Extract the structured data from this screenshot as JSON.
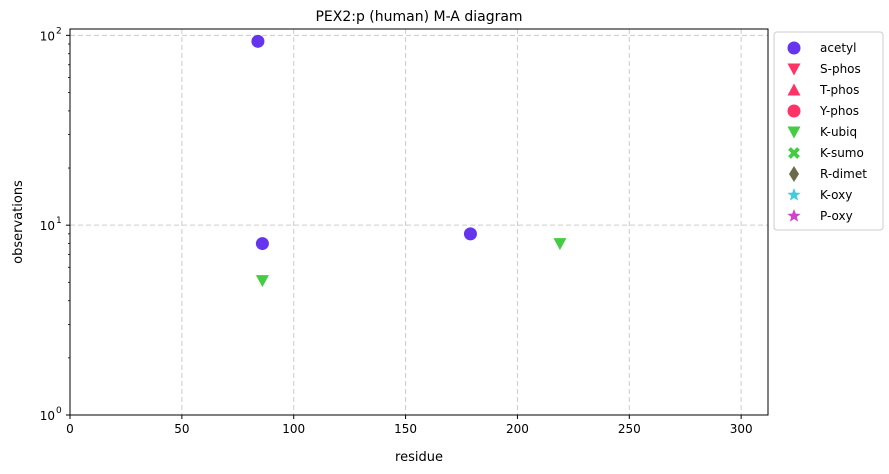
{
  "chart_data": {
    "type": "scatter",
    "title": "PEX2:p (human) M-A diagram",
    "xlabel": "residue",
    "ylabel": "observations",
    "xlim": [
      0,
      312
    ],
    "ylim": [
      1,
      108
    ],
    "yscale": "log",
    "grid": true,
    "legend_position": "outside-right",
    "x_ticks": [
      0,
      50,
      100,
      150,
      200,
      250,
      300
    ],
    "x_tick_labels": [
      "0",
      "50",
      "100",
      "150",
      "200",
      "250",
      "300"
    ],
    "y_ticks": [
      1,
      10,
      100
    ],
    "y_tick_labels": [
      "10",
      "10",
      "10"
    ],
    "y_tick_exponents": [
      "0",
      "1",
      "2"
    ],
    "series": [
      {
        "name": "acetyl",
        "marker": "circle",
        "color": "#6633ee",
        "points": [
          [
            84,
            93
          ],
          [
            86,
            8
          ],
          [
            179,
            9
          ]
        ]
      },
      {
        "name": "S-phos",
        "marker": "triangle-down",
        "color": "#ff3366",
        "points": []
      },
      {
        "name": "T-phos",
        "marker": "triangle-up",
        "color": "#ff3366",
        "points": []
      },
      {
        "name": "Y-phos",
        "marker": "circle",
        "color": "#ff3366",
        "points": []
      },
      {
        "name": "K-ubiq",
        "marker": "triangle-down",
        "color": "#44cc44",
        "points": [
          [
            86,
            5.1
          ],
          [
            219,
            8
          ]
        ]
      },
      {
        "name": "K-sumo",
        "marker": "x-thick",
        "color": "#44cc44",
        "points": []
      },
      {
        "name": "R-dimet",
        "marker": "diamond",
        "color": "#6b6b4b",
        "points": []
      },
      {
        "name": "K-oxy",
        "marker": "star",
        "color": "#44ccdd",
        "points": []
      },
      {
        "name": "P-oxy",
        "marker": "star",
        "color": "#cc44cc",
        "points": []
      }
    ]
  }
}
